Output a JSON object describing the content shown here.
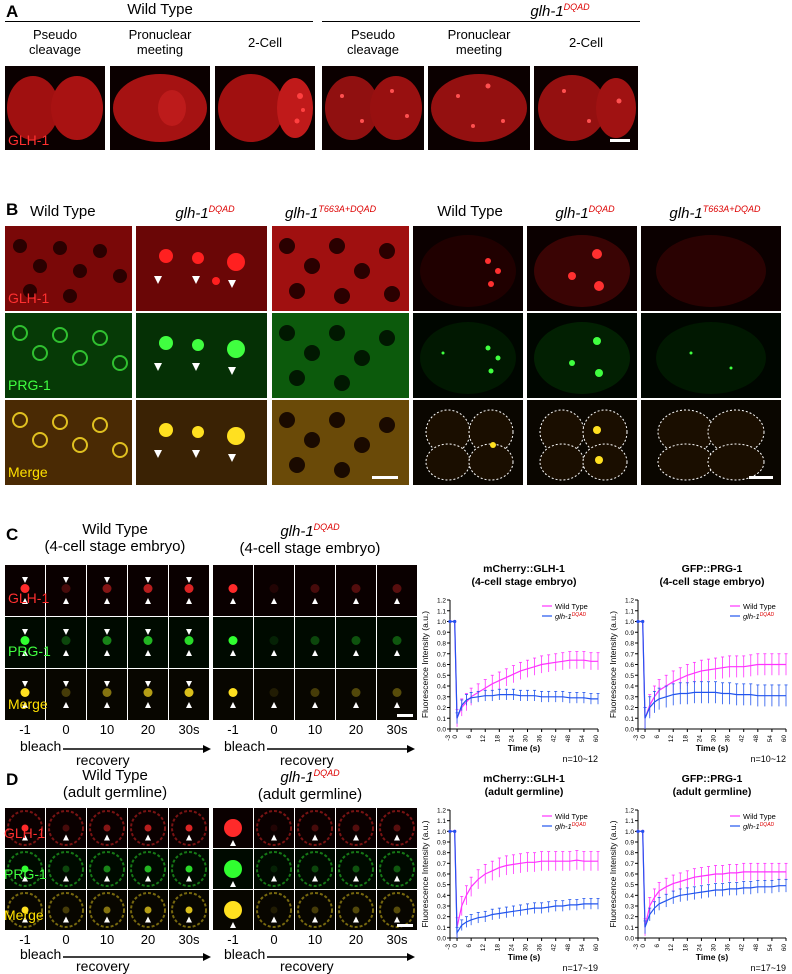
{
  "panelA": {
    "letter": "A",
    "group_wt": "Wild Type",
    "group_mut": "glh-1",
    "group_mut_sup": "DQAD",
    "stages": [
      "Pseudo\ncleavage",
      "Pronuclear\nmeeting",
      "2-Cell"
    ],
    "channel": "GLH-1"
  },
  "panelB": {
    "letter": "B",
    "genotypes": [
      {
        "name": "Wild Type",
        "sup": ""
      },
      {
        "name": "glh-1",
        "sup": "DQAD"
      },
      {
        "name": "glh-1",
        "sup": "T663A+DQAD"
      }
    ],
    "channels": [
      "GLH-1",
      "PRG-1",
      "Merge"
    ]
  },
  "panelC": {
    "letter": "C",
    "wt_title": "Wild Type",
    "wt_sub": "(4-cell stage embryo)",
    "mut_title": "glh-1",
    "mut_sup": "DQAD",
    "mut_sub": "(4-cell stage embryo)",
    "channels": [
      "GLH-1",
      "PRG-1",
      "Merge"
    ],
    "timepoints": [
      "-1",
      "0",
      "10",
      "20",
      "30s"
    ],
    "bleach": "bleach",
    "recovery": "recovery"
  },
  "panelD": {
    "letter": "D",
    "wt_title": "Wild Type",
    "wt_sub": "(adult germline)",
    "mut_title": "glh-1",
    "mut_sup": "DQAD",
    "mut_sub": "(adult germline)",
    "channels": [
      "GLH-1",
      "PRG-1",
      "Merge"
    ],
    "timepoints": [
      "-1",
      "0",
      "10",
      "20",
      "30s"
    ],
    "bleach": "bleach",
    "recovery": "recovery"
  },
  "chart_data": [
    {
      "type": "line",
      "title": "mCherry::GLH-1",
      "subtitle": "(4-cell stage embryo)",
      "xlabel": "Time (s)",
      "ylabel": "Fluorescence Intensity (a.u.)",
      "note": "n=10~12",
      "xlim": [
        -3,
        60
      ],
      "ylim": [
        0,
        1.2
      ],
      "xticks": [
        -3,
        0,
        6,
        12,
        18,
        24,
        30,
        36,
        42,
        48,
        54,
        60
      ],
      "yticks": [
        0.0,
        0.1,
        0.2,
        0.3,
        0.4,
        0.5,
        0.6,
        0.7,
        0.8,
        0.9,
        1.0,
        1.1,
        1.2
      ],
      "legend": "top-right",
      "series": [
        {
          "name": "Wild Type",
          "color": "#ff33ff",
          "x": [
            -3,
            -1,
            0,
            2,
            4,
            6,
            9,
            12,
            15,
            18,
            21,
            24,
            27,
            30,
            33,
            36,
            39,
            42,
            45,
            48,
            51,
            54,
            57,
            60
          ],
          "y": [
            1.0,
            1.0,
            0.1,
            0.2,
            0.25,
            0.3,
            0.34,
            0.38,
            0.42,
            0.45,
            0.48,
            0.51,
            0.54,
            0.56,
            0.58,
            0.6,
            0.61,
            0.62,
            0.63,
            0.64,
            0.64,
            0.64,
            0.63,
            0.63
          ],
          "err": 0.08
        },
        {
          "name": "glh-1",
          "sup": "DQAD",
          "color": "#2255ee",
          "x": [
            -3,
            -1,
            0,
            2,
            4,
            6,
            9,
            12,
            15,
            18,
            21,
            24,
            27,
            30,
            33,
            36,
            39,
            42,
            45,
            48,
            51,
            54,
            57,
            60
          ],
          "y": [
            1.0,
            1.0,
            0.1,
            0.22,
            0.27,
            0.29,
            0.3,
            0.31,
            0.31,
            0.32,
            0.32,
            0.32,
            0.31,
            0.31,
            0.31,
            0.3,
            0.3,
            0.3,
            0.3,
            0.29,
            0.29,
            0.29,
            0.28,
            0.28
          ],
          "err": 0.05
        }
      ]
    },
    {
      "type": "line",
      "title": "GFP::PRG-1",
      "subtitle": "(4-cell stage embryo)",
      "xlabel": "Time (s)",
      "ylabel": "Fluorescence Intensity (a.u.)",
      "note": "n=10~12",
      "xlim": [
        -3,
        60
      ],
      "ylim": [
        0,
        1.2
      ],
      "xticks": [
        -3,
        0,
        6,
        12,
        18,
        24,
        30,
        36,
        42,
        48,
        54,
        60
      ],
      "yticks": [
        0.0,
        0.1,
        0.2,
        0.3,
        0.4,
        0.5,
        0.6,
        0.7,
        0.8,
        0.9,
        1.0,
        1.1,
        1.2
      ],
      "legend": "top-right",
      "series": [
        {
          "name": "Wild Type",
          "color": "#ff33ff",
          "x": [
            -3,
            -1,
            0,
            2,
            4,
            6,
            9,
            12,
            15,
            18,
            21,
            24,
            27,
            30,
            33,
            36,
            39,
            42,
            45,
            48,
            51,
            54,
            57,
            60
          ],
          "y": [
            1.0,
            1.0,
            0.1,
            0.22,
            0.3,
            0.36,
            0.4,
            0.44,
            0.47,
            0.5,
            0.52,
            0.54,
            0.55,
            0.56,
            0.57,
            0.58,
            0.58,
            0.58,
            0.59,
            0.6,
            0.6,
            0.6,
            0.6,
            0.6
          ],
          "err": 0.1
        },
        {
          "name": "glh-1",
          "sup": "DQAD",
          "color": "#2255ee",
          "x": [
            -3,
            -1,
            0,
            2,
            4,
            6,
            9,
            12,
            15,
            18,
            21,
            24,
            27,
            30,
            33,
            36,
            39,
            42,
            45,
            48,
            51,
            54,
            57,
            60
          ],
          "y": [
            1.0,
            1.0,
            0.1,
            0.2,
            0.25,
            0.28,
            0.3,
            0.32,
            0.33,
            0.33,
            0.34,
            0.34,
            0.34,
            0.34,
            0.33,
            0.33,
            0.32,
            0.32,
            0.32,
            0.31,
            0.31,
            0.31,
            0.31,
            0.31
          ],
          "err": 0.1
        }
      ]
    },
    {
      "type": "line",
      "title": "mCherry::GLH-1",
      "subtitle": "(adult germline)",
      "xlabel": "Time (s)",
      "ylabel": "Fluorescence Intensity (a.u.)",
      "note": "n=17~19",
      "xlim": [
        -3,
        60
      ],
      "ylim": [
        0,
        1.2
      ],
      "xticks": [
        -3,
        0,
        6,
        12,
        18,
        24,
        30,
        36,
        42,
        48,
        54,
        60
      ],
      "yticks": [
        0.0,
        0.1,
        0.2,
        0.3,
        0.4,
        0.5,
        0.6,
        0.7,
        0.8,
        0.9,
        1.0,
        1.1,
        1.2
      ],
      "legend": "top-right",
      "series": [
        {
          "name": "Wild Type",
          "color": "#ff33ff",
          "x": [
            -3,
            -1,
            0,
            2,
            4,
            6,
            9,
            12,
            15,
            18,
            21,
            24,
            27,
            30,
            33,
            36,
            39,
            42,
            45,
            48,
            51,
            54,
            57,
            60
          ],
          "y": [
            1.0,
            1.0,
            0.1,
            0.3,
            0.4,
            0.48,
            0.55,
            0.6,
            0.63,
            0.66,
            0.68,
            0.69,
            0.7,
            0.71,
            0.71,
            0.72,
            0.72,
            0.72,
            0.72,
            0.72,
            0.73,
            0.72,
            0.72,
            0.72
          ],
          "err": 0.09
        },
        {
          "name": "glh-1",
          "sup": "DQAD",
          "color": "#2255ee",
          "x": [
            -3,
            -1,
            0,
            2,
            4,
            6,
            9,
            12,
            15,
            18,
            21,
            24,
            27,
            30,
            33,
            36,
            39,
            42,
            45,
            48,
            51,
            54,
            57,
            60
          ],
          "y": [
            1.0,
            1.0,
            0.05,
            0.12,
            0.15,
            0.17,
            0.19,
            0.2,
            0.22,
            0.23,
            0.24,
            0.25,
            0.26,
            0.27,
            0.28,
            0.28,
            0.29,
            0.3,
            0.3,
            0.31,
            0.31,
            0.32,
            0.32,
            0.32
          ],
          "err": 0.05
        }
      ]
    },
    {
      "type": "line",
      "title": "GFP::PRG-1",
      "subtitle": "(adult germline)",
      "xlabel": "Time (s)",
      "ylabel": "Fluorescence Intensity (a.u.)",
      "note": "n=17~19",
      "xlim": [
        -3,
        60
      ],
      "ylim": [
        0,
        1.2
      ],
      "xticks": [
        -3,
        0,
        6,
        12,
        18,
        24,
        30,
        36,
        42,
        48,
        54,
        60
      ],
      "yticks": [
        0.0,
        0.1,
        0.2,
        0.3,
        0.4,
        0.5,
        0.6,
        0.7,
        0.8,
        0.9,
        1.0,
        1.1,
        1.2
      ],
      "legend": "top-right",
      "series": [
        {
          "name": "Wild Type",
          "color": "#ff33ff",
          "x": [
            -3,
            -1,
            0,
            2,
            4,
            6,
            9,
            12,
            15,
            18,
            21,
            24,
            27,
            30,
            33,
            36,
            39,
            42,
            45,
            48,
            51,
            54,
            57,
            60
          ],
          "y": [
            1.0,
            1.0,
            0.1,
            0.3,
            0.38,
            0.44,
            0.48,
            0.51,
            0.53,
            0.55,
            0.57,
            0.58,
            0.59,
            0.6,
            0.6,
            0.61,
            0.61,
            0.62,
            0.62,
            0.62,
            0.62,
            0.62,
            0.62,
            0.62
          ],
          "err": 0.08
        },
        {
          "name": "glh-1",
          "sup": "DQAD",
          "color": "#2255ee",
          "x": [
            -3,
            -1,
            0,
            2,
            4,
            6,
            9,
            12,
            15,
            18,
            21,
            24,
            27,
            30,
            33,
            36,
            39,
            42,
            45,
            48,
            51,
            54,
            57,
            60
          ],
          "y": [
            1.0,
            1.0,
            0.1,
            0.22,
            0.28,
            0.32,
            0.35,
            0.38,
            0.4,
            0.41,
            0.42,
            0.43,
            0.44,
            0.45,
            0.45,
            0.46,
            0.46,
            0.47,
            0.47,
            0.48,
            0.48,
            0.48,
            0.49,
            0.49
          ],
          "err": 0.06
        }
      ]
    }
  ]
}
